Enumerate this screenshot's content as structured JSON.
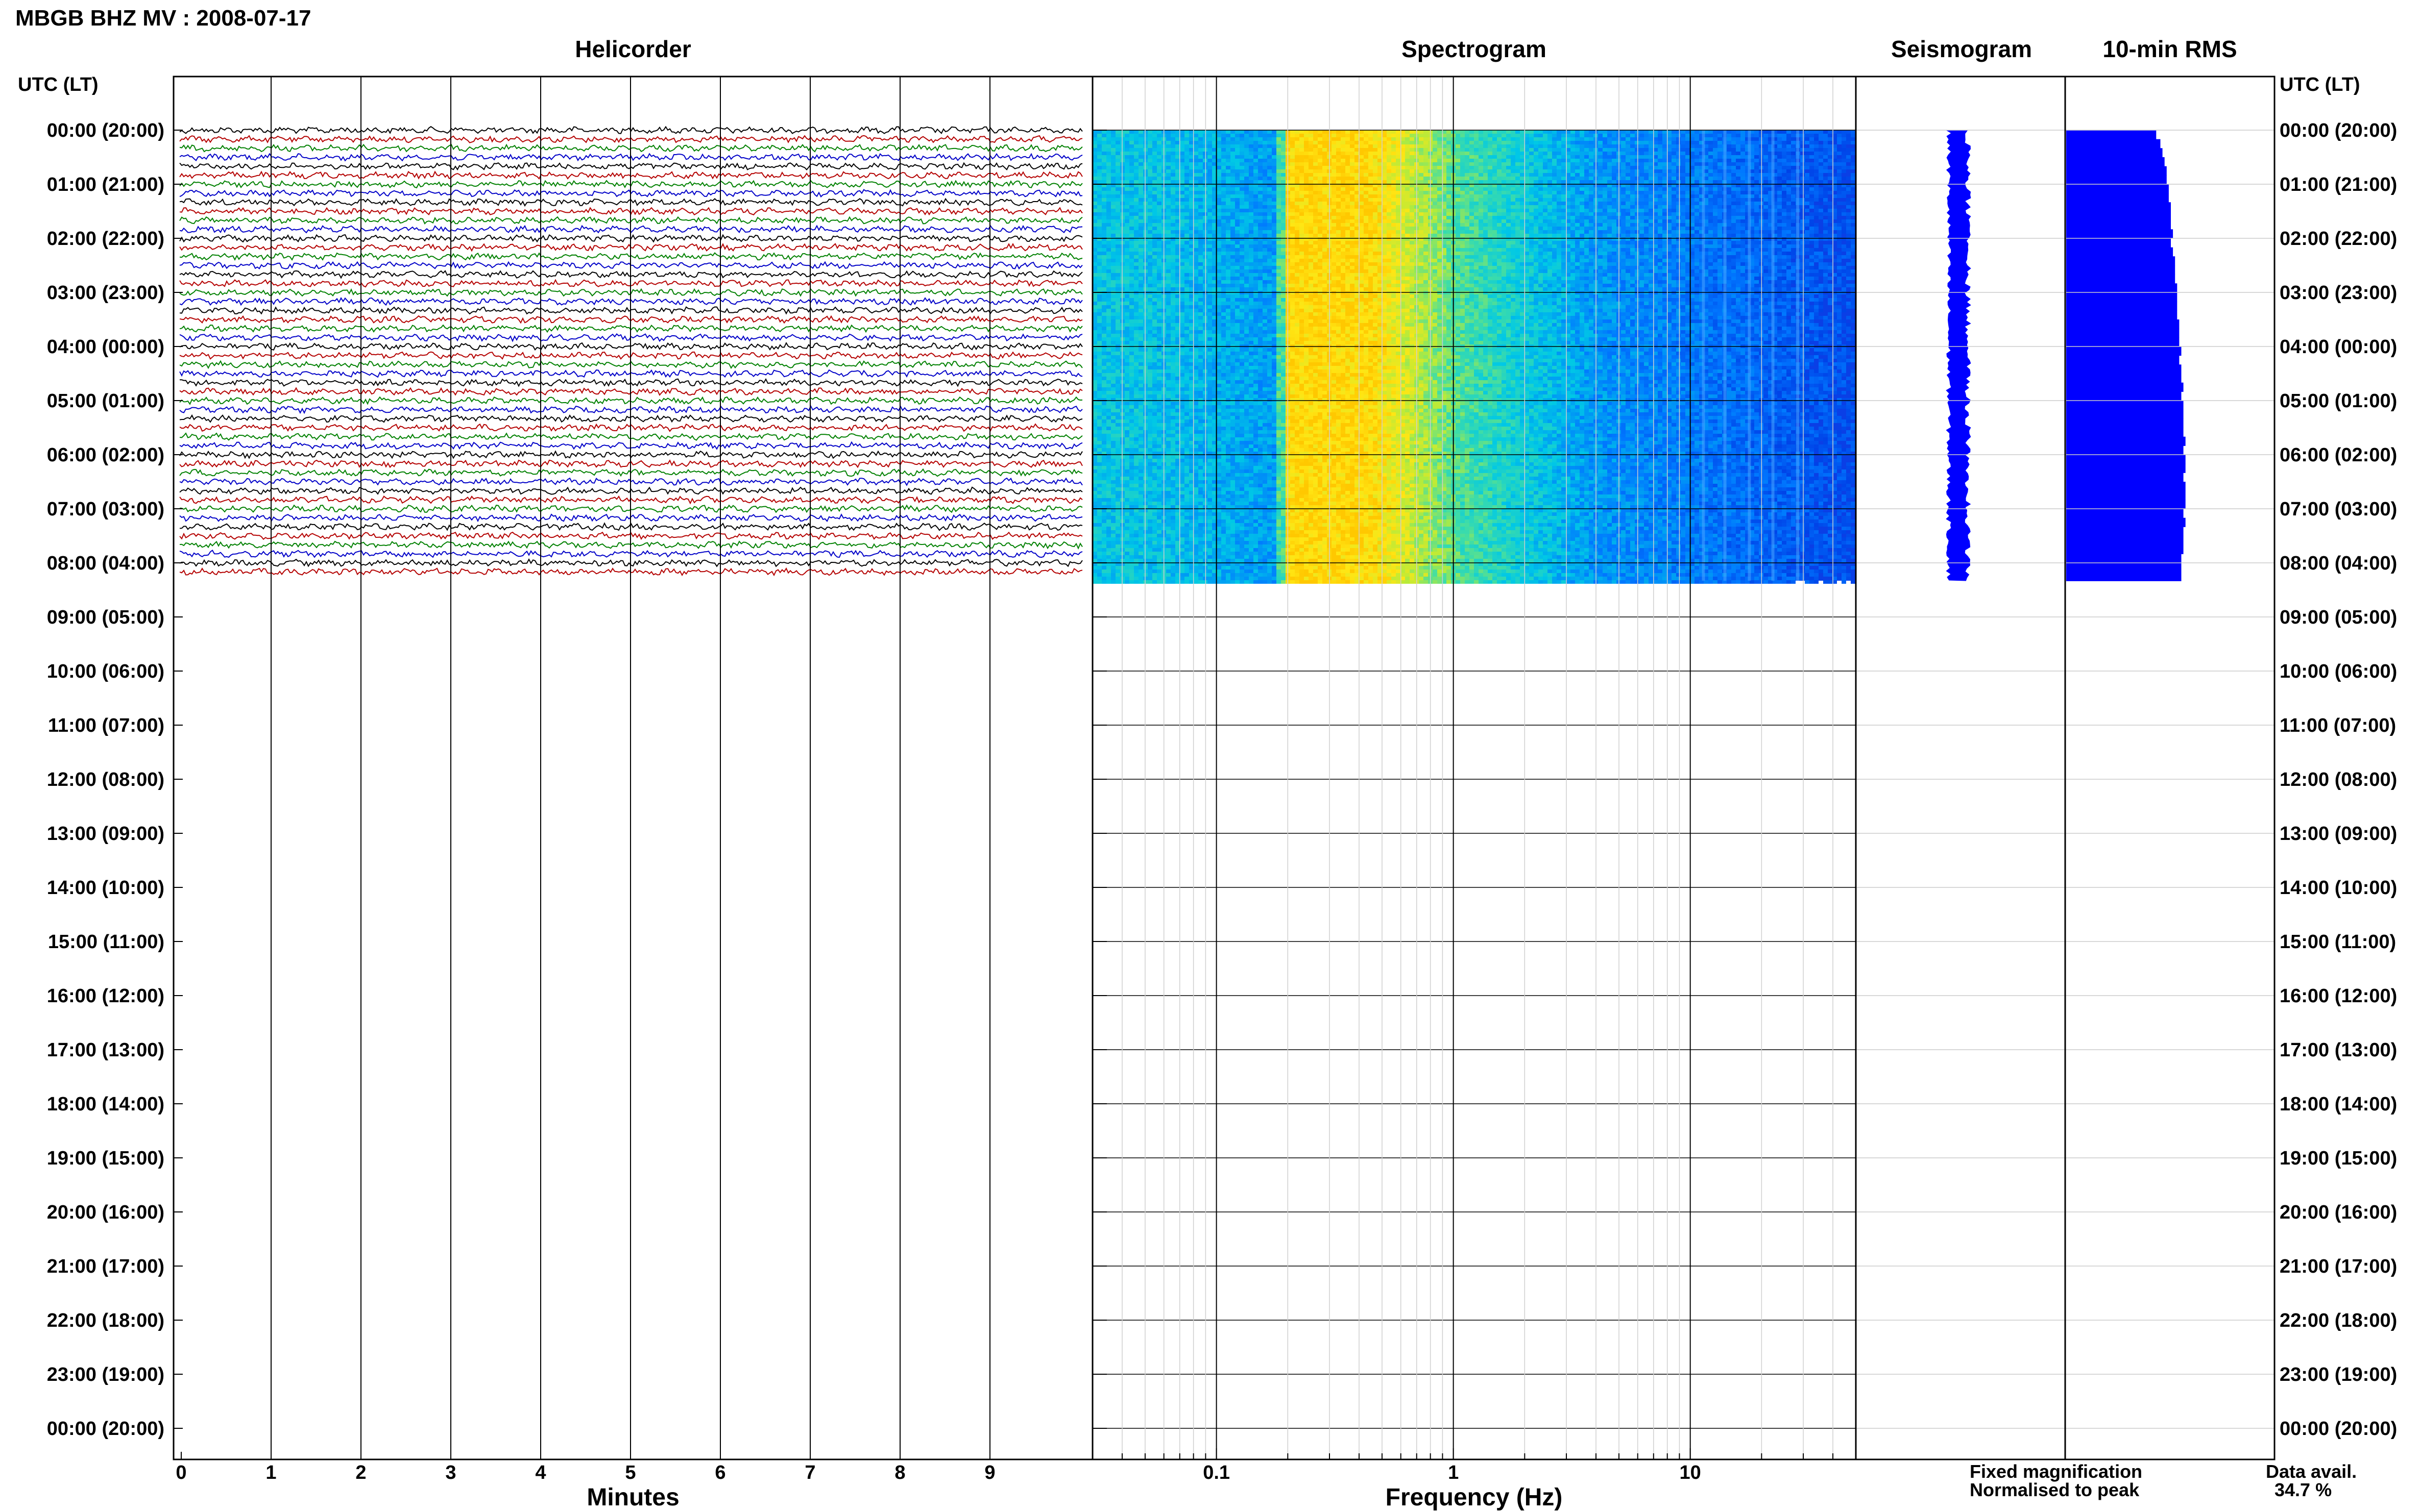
{
  "title": "MBGB BHZ MV : 2008-07-17",
  "chart_data": {
    "type": "line",
    "panels": [
      {
        "name": "Helicorder",
        "xlabel": "Minutes",
        "xticks": [
          "0",
          "1",
          "2",
          "3",
          "4",
          "5",
          "6",
          "7",
          "8",
          "9"
        ],
        "xlim": [
          0,
          10
        ]
      },
      {
        "name": "Spectrogram",
        "xlabel": "Frequency (Hz)",
        "xticks": [
          "0.1",
          "1",
          "10"
        ],
        "xscale": "log",
        "xlim": [
          0.03,
          50
        ]
      },
      {
        "name": "Seismogram"
      },
      {
        "name": "10-min RMS"
      }
    ],
    "ylabel_left": "UTC (LT)",
    "ylabel_right": "UTC (LT)",
    "hour_labels": [
      "00:00 (20:00)",
      "01:00 (21:00)",
      "02:00 (22:00)",
      "03:00 (23:00)",
      "04:00 (00:00)",
      "05:00 (01:00)",
      "06:00 (02:00)",
      "07:00 (03:00)",
      "08:00 (04:00)",
      "09:00 (05:00)",
      "10:00 (06:00)",
      "11:00 (07:00)",
      "12:00 (08:00)",
      "13:00 (09:00)",
      "14:00 (10:00)",
      "15:00 (11:00)",
      "16:00 (12:00)",
      "17:00 (13:00)",
      "18:00 (14:00)",
      "19:00 (15:00)",
      "20:00 (16:00)",
      "21:00 (17:00)",
      "22:00 (18:00)",
      "23:00 (19:00)",
      "00:00 (20:00)"
    ],
    "data_end_hours": 8.33,
    "helicorder_colors": [
      "#000000",
      "#b40000",
      "#008000",
      "#0000c8"
    ],
    "rms_values": [
      0.43,
      0.45,
      0.46,
      0.47,
      0.48,
      0.48,
      0.49,
      0.49,
      0.5,
      0.5,
      0.5,
      0.51,
      0.5,
      0.51,
      0.52,
      0.52,
      0.52,
      0.53,
      0.53,
      0.53,
      0.53,
      0.54,
      0.54,
      0.54,
      0.55,
      0.54,
      0.55,
      0.55,
      0.56,
      0.55,
      0.56,
      0.56,
      0.56,
      0.56,
      0.57,
      0.56,
      0.57,
      0.57,
      0.56,
      0.57,
      0.57,
      0.57,
      0.56,
      0.57,
      0.56,
      0.56,
      0.56,
      0.55,
      0.55,
      0.55
    ],
    "colors": {
      "seismogram": "#0000ff",
      "rms": "#0000ff",
      "legend_fixed": "#0000ff",
      "legend_normalised": "#ff0000"
    }
  },
  "legend": {
    "fixed": "Fixed magnification",
    "normalised": "Normalised to peak"
  },
  "data_avail": {
    "label": "Data avail.",
    "value": "34.7 %"
  }
}
